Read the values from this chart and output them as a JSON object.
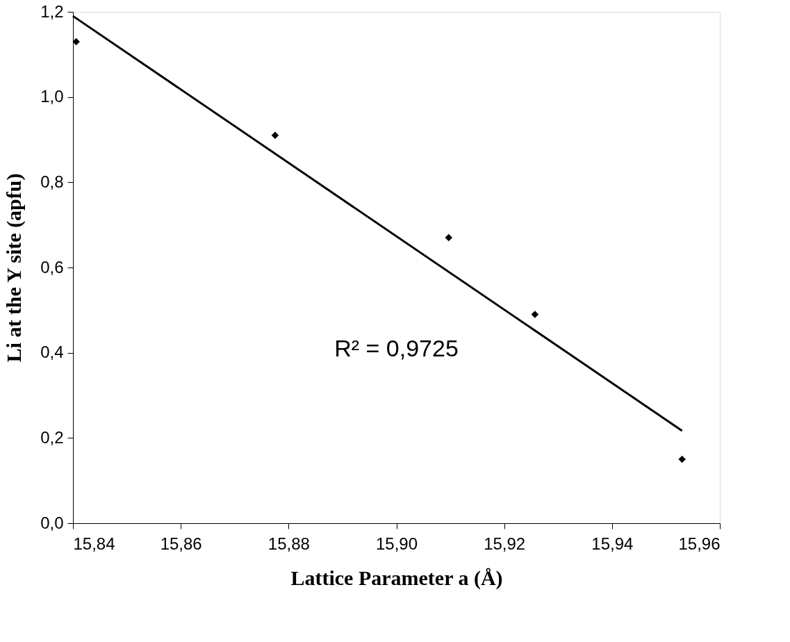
{
  "chart_data": {
    "type": "scatter",
    "xlabel": "Lattice Parameter a  (Å)",
    "ylabel": "Li at the Y site (apfu)",
    "series": [
      {
        "type": "scatter",
        "marker": "diamond",
        "color": "#000000",
        "x": [
          15.8406,
          15.8775,
          15.9097,
          15.9257,
          15.953
        ],
        "values": [
          1.13,
          0.91,
          0.67,
          0.49,
          0.15
        ]
      },
      {
        "type": "line",
        "line_style": "solid",
        "color": "#000000",
        "x": [
          15.84,
          15.953
        ],
        "values": [
          1.19,
          0.217
        ]
      }
    ],
    "annotations": [
      "R² = 0,9725"
    ],
    "xlim": [
      15.84,
      15.96
    ],
    "xticks": [
      {
        "value": 15.84,
        "label": "15,84"
      },
      {
        "value": 15.86,
        "label": "15,86"
      },
      {
        "value": 15.88,
        "label": "15,88"
      },
      {
        "value": 15.9,
        "label": "15,90"
      },
      {
        "value": 15.92,
        "label": "15,92"
      },
      {
        "value": 15.94,
        "label": "15,94"
      },
      {
        "value": 15.96,
        "label": "15,96"
      }
    ],
    "ylim": [
      0,
      1.2
    ],
    "yticks": [
      {
        "value": 0,
        "label": "0,0"
      },
      {
        "value": 0.2,
        "label": "0,2"
      },
      {
        "value": 0.4,
        "label": "0,4"
      },
      {
        "value": 0.6,
        "label": "0,6"
      },
      {
        "value": 0.8,
        "label": "0,8"
      },
      {
        "value": 1.0,
        "label": "1,0"
      },
      {
        "value": 1.2,
        "label": "1,2"
      }
    ],
    "grid": false,
    "legend": false
  }
}
